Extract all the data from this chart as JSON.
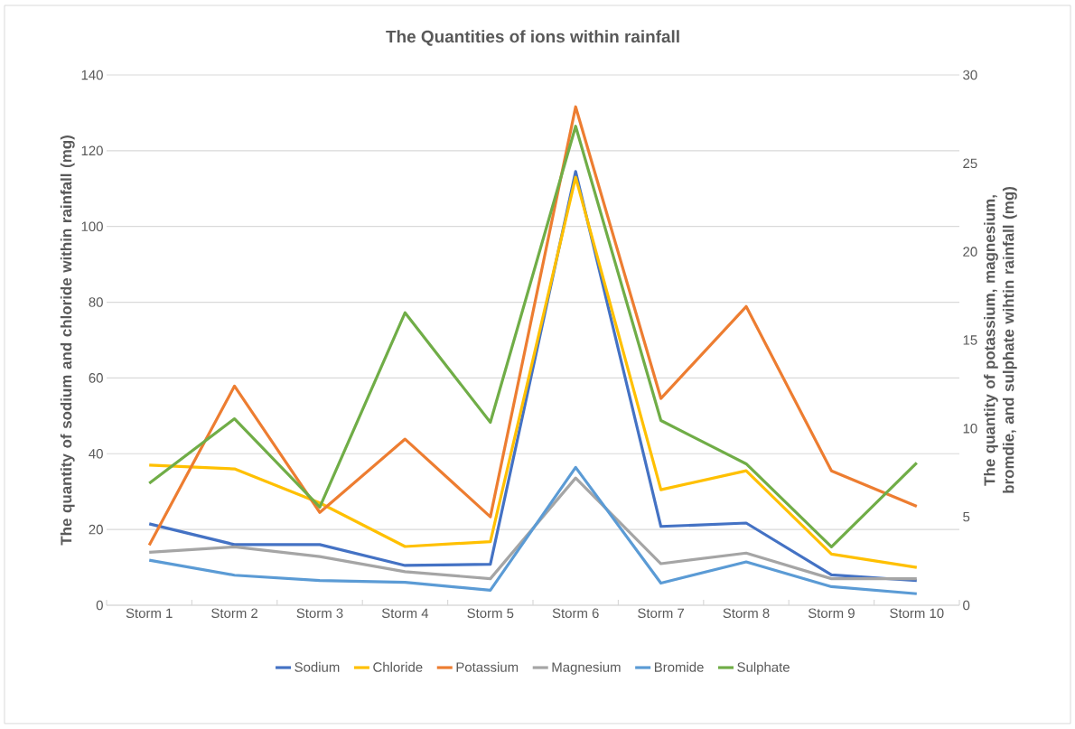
{
  "chart_data": {
    "type": "line",
    "title": "The Quantities of ions within rainfall",
    "ylabel": "The quantity of sodium and chloride within rainfall (mg)",
    "y2label": "The quantity of potassium, magnesium, bromdie, and sulphate wihtin rainfall (mg)",
    "categories": [
      "Storm 1",
      "Storm 2",
      "Storm 3",
      "Storm 4",
      "Storm 5",
      "Storm 6",
      "Storm 7",
      "Storm 8",
      "Storm 9",
      "Storm 10"
    ],
    "series": [
      {
        "name": "Sodium",
        "color": "#4472c4",
        "values": [
          21.5,
          16,
          16,
          10.5,
          10.8,
          114.5,
          20.8,
          21.7,
          8,
          6.5
        ]
      },
      {
        "name": "Chloride",
        "color": "#ffc000",
        "values": [
          37,
          36,
          27,
          15.5,
          16.8,
          113,
          30.5,
          35.5,
          13.5,
          10
        ]
      },
      {
        "name": "Potassium",
        "color": "#ed7d31",
        "axis": "y2",
        "values": [
          3.4,
          12.4,
          5.25,
          9.4,
          5.0,
          28.2,
          11.7,
          16.9,
          7.6,
          5.6
        ]
      },
      {
        "name": "Magnesium",
        "color": "#a5a5a5",
        "axis": "y2",
        "values": [
          3.0,
          3.3,
          2.75,
          1.9,
          1.5,
          7.2,
          2.35,
          2.95,
          1.5,
          1.5
        ]
      },
      {
        "name": "Bromide",
        "color": "#5b9bd5",
        "axis": "y2",
        "values": [
          2.55,
          1.7,
          1.4,
          1.3,
          0.85,
          7.8,
          1.25,
          2.45,
          1.05,
          0.65
        ]
      },
      {
        "name": "Sulphate",
        "color": "#70ad47",
        "axis": "y2",
        "values": [
          6.9,
          10.55,
          5.55,
          16.55,
          10.35,
          27.1,
          10.45,
          8.0,
          3.3,
          8.05
        ]
      }
    ],
    "ylim": [
      0,
      140
    ],
    "yticks": [
      0,
      20,
      40,
      60,
      80,
      100,
      120,
      140
    ],
    "y2lim": [
      0,
      30
    ],
    "y2ticks": [
      0,
      5,
      10,
      15,
      20,
      25,
      30
    ],
    "grid": "y",
    "legend": "bottom",
    "marker": "none",
    "line_style": "solid"
  }
}
